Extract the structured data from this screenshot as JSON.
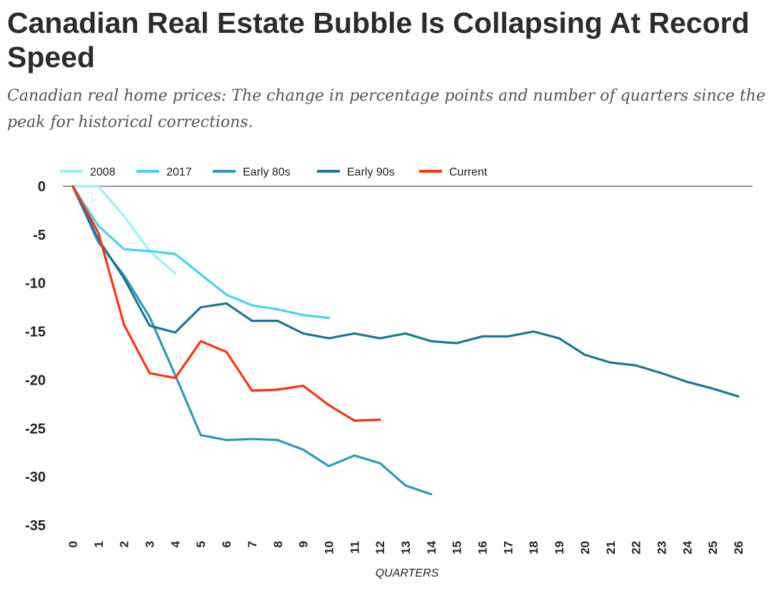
{
  "title": "Canadian Real Estate Bubble Is Collapsing At Record Speed",
  "subtitle": "Canadian real home prices: The change in percentage points and number of quarters since the peak for historical corrections.",
  "chart_data": {
    "type": "line",
    "title": "Canadian Real Estate Bubble Is Collapsing At Record Speed",
    "xlabel": "QUARTERS",
    "ylabel": "",
    "xlim": [
      0,
      26
    ],
    "ylim": [
      -35,
      0
    ],
    "yticks": [
      0,
      -5,
      -10,
      -15,
      -20,
      -25,
      -30,
      -35
    ],
    "xticks": [
      0,
      1,
      2,
      3,
      4,
      5,
      6,
      7,
      8,
      9,
      10,
      11,
      12,
      13,
      14,
      15,
      16,
      17,
      18,
      19,
      20,
      21,
      22,
      23,
      24,
      25,
      26
    ],
    "legend_position": "top",
    "grid": false,
    "series": [
      {
        "name": "2008",
        "color": "#9ef0fb",
        "values": [
          0,
          0,
          -3.1,
          -6.7,
          -9.0
        ]
      },
      {
        "name": "2017",
        "color": "#48d2ef",
        "values": [
          0,
          -4.1,
          -6.5,
          -6.7,
          -7.0,
          -9.1,
          -11.2,
          -12.3,
          -12.7,
          -13.3,
          -13.6
        ]
      },
      {
        "name": "Early 80s",
        "color": "#2e98bf",
        "values": [
          0,
          -5.8,
          -9.2,
          -13.5,
          -19.5,
          -25.7,
          -26.2,
          -26.1,
          -26.2,
          -27.2,
          -28.9,
          -27.8,
          -28.6,
          -30.9,
          -31.8
        ]
      },
      {
        "name": "Early 90s",
        "color": "#1f7595",
        "values": [
          0,
          -5.5,
          -9.5,
          -14.4,
          -15.1,
          -12.5,
          -12.1,
          -13.9,
          -13.9,
          -15.2,
          -15.7,
          -15.2,
          -15.7,
          -15.2,
          -16.0,
          -16.2,
          -15.5,
          -15.5,
          -15.0,
          -15.7,
          -17.4,
          -18.2,
          -18.5,
          -19.3,
          -20.2,
          -20.9,
          -21.7
        ]
      },
      {
        "name": "Current",
        "color": "#ff3311",
        "values": [
          0,
          -4.8,
          -14.3,
          -19.3,
          -19.8,
          -16.0,
          -17.1,
          -21.1,
          -21.0,
          -20.6,
          -22.6,
          -24.2,
          -24.1
        ]
      }
    ]
  }
}
